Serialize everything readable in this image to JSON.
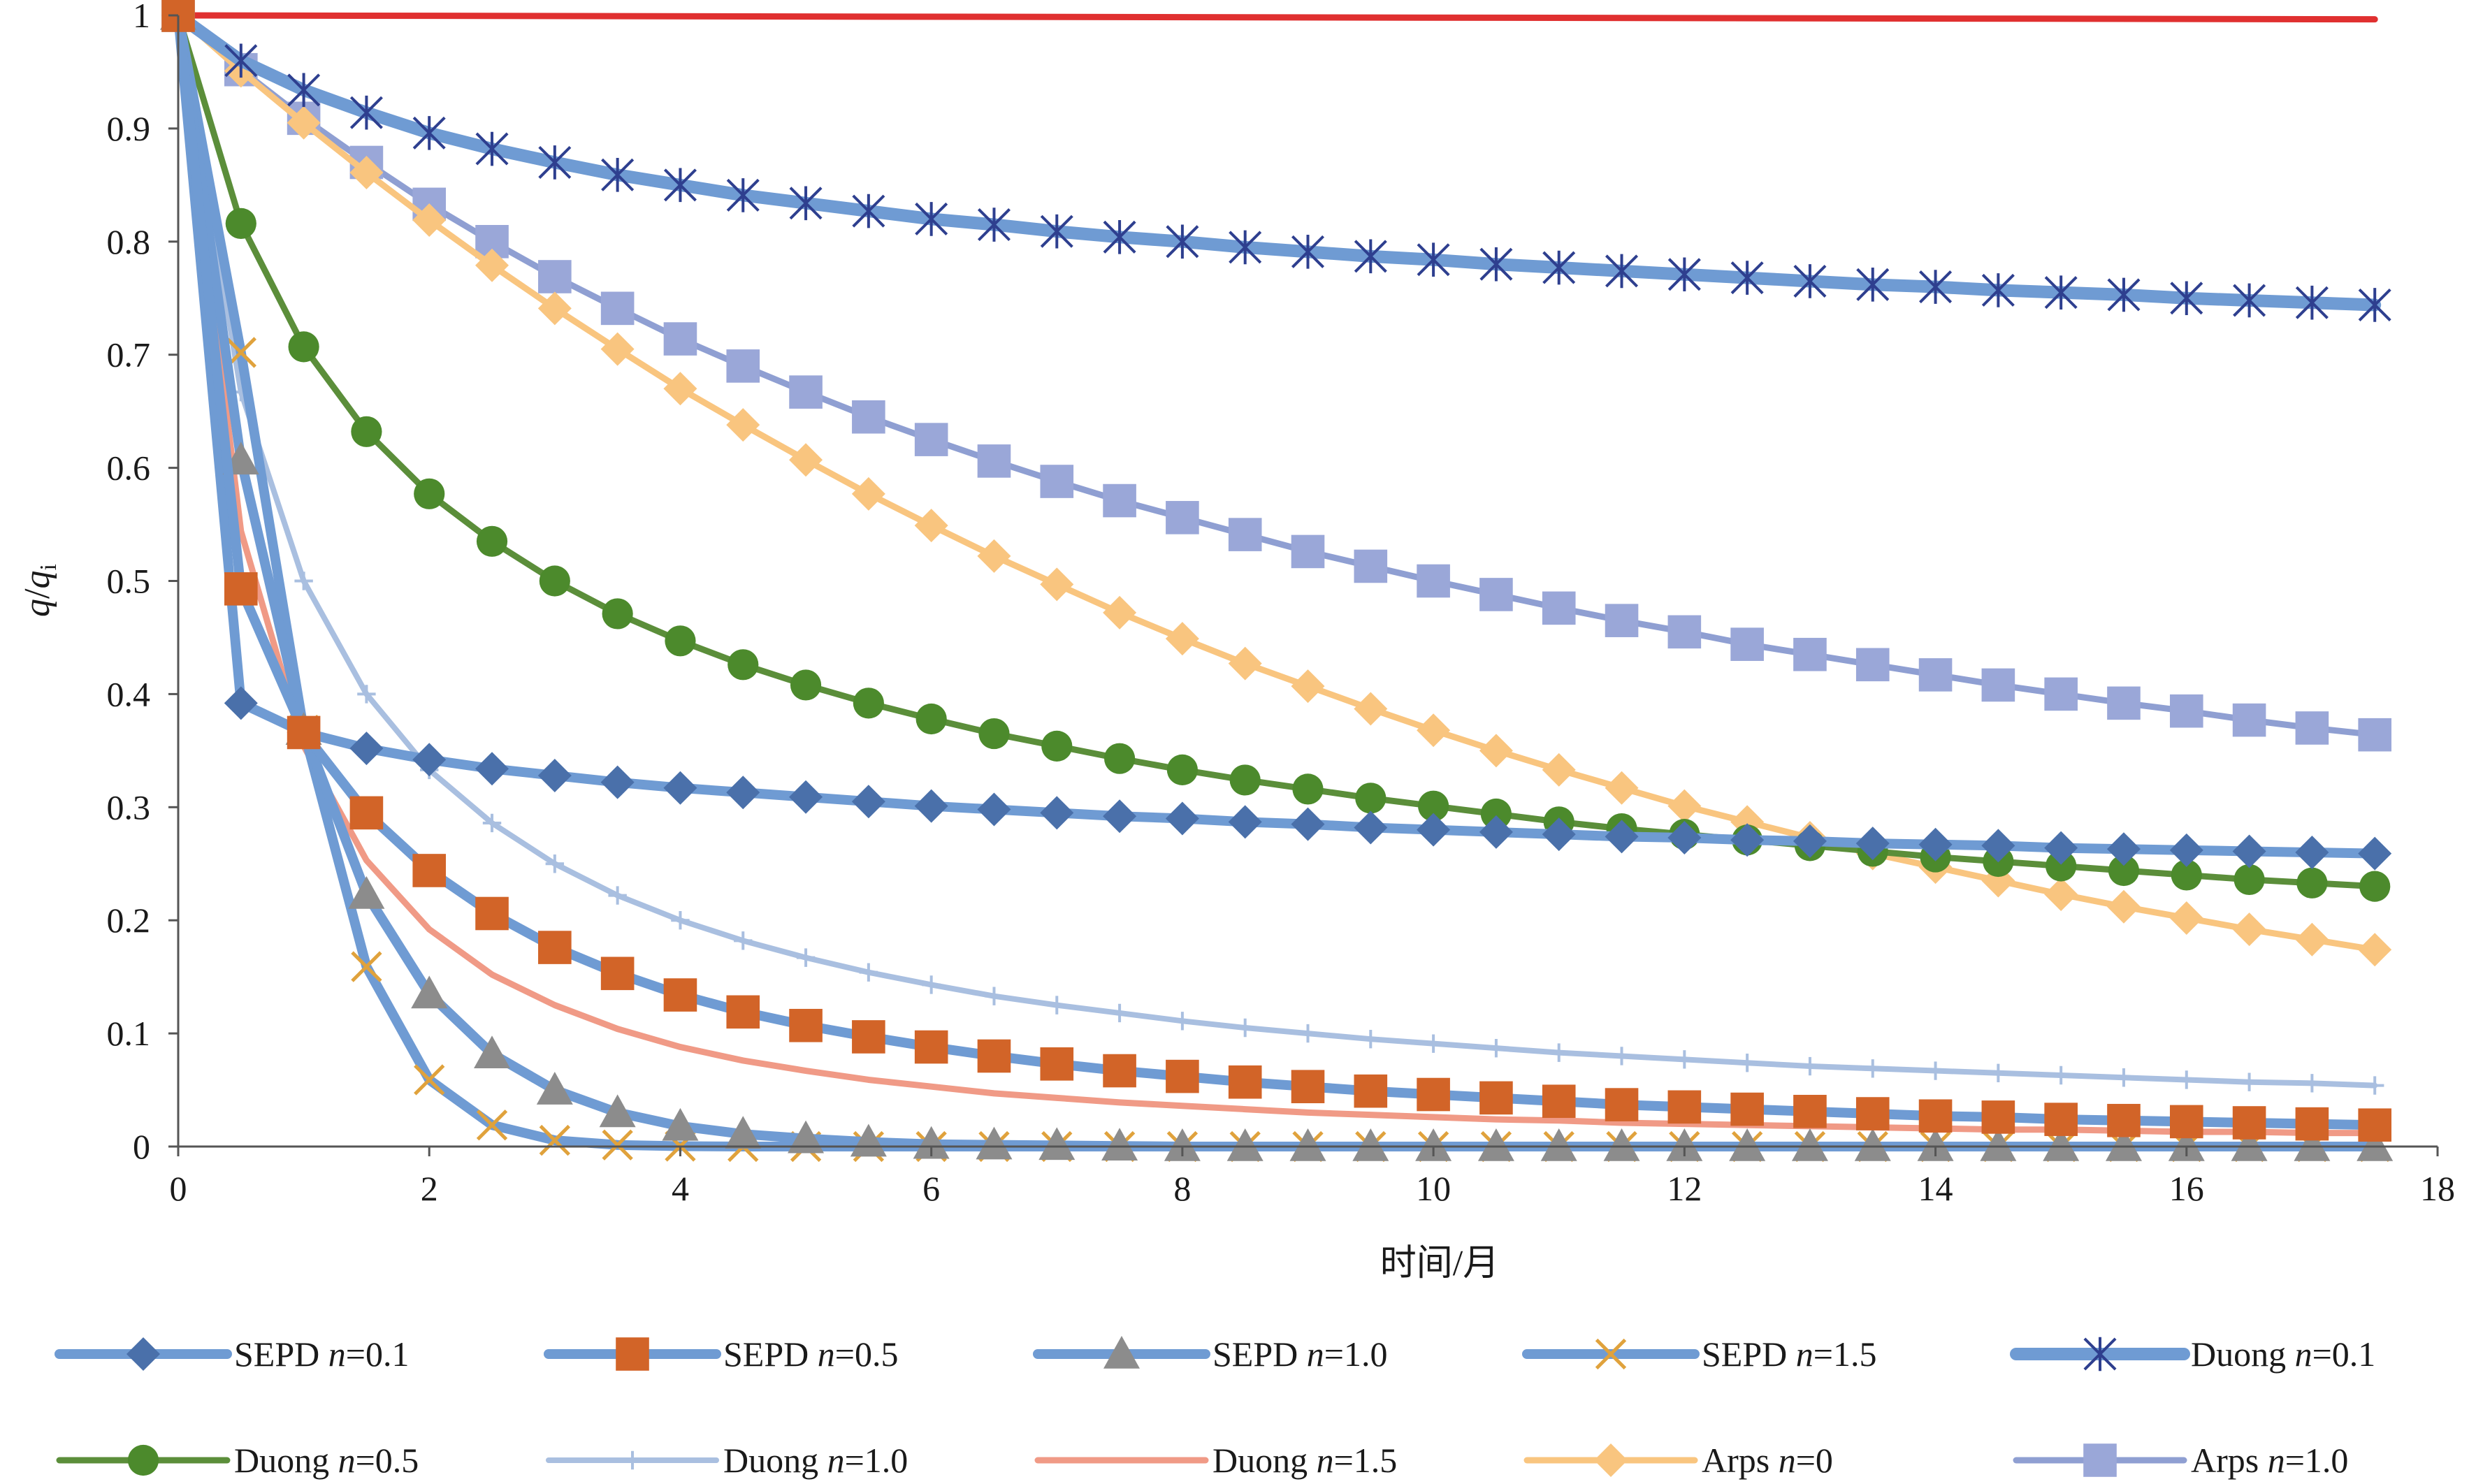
{
  "chart_data": {
    "type": "line",
    "xlabel": "时间/月",
    "ylabel_main": "q",
    "ylabel_sep": "/",
    "ylabel_q": "q",
    "ylabel_sub": "i",
    "xlim": [
      0,
      18
    ],
    "ylim": [
      0,
      1
    ],
    "x_ticks": [
      "0",
      "2",
      "4",
      "6",
      "8",
      "10",
      "12",
      "14",
      "16",
      "18"
    ],
    "y_ticks": [
      "0",
      "0.1",
      "0.2",
      "0.3",
      "0.4",
      "0.5",
      "0.6",
      "0.7",
      "0.8",
      "0.9",
      "1"
    ],
    "grid": false,
    "legend_placement": "bottom",
    "x": [
      0,
      0.5,
      1,
      1.5,
      2,
      2.5,
      3,
      3.5,
      4,
      4.5,
      5,
      5.5,
      6,
      6.5,
      7,
      7.5,
      8,
      8.5,
      9,
      9.5,
      10,
      10.5,
      11,
      11.5,
      12,
      12.5,
      13,
      13.5,
      14,
      14.5,
      15,
      15.5,
      16,
      16.5,
      17,
      17.5
    ],
    "series": [
      {
        "name": "SEPD",
        "n_label": "n",
        "n_value": "=0.1",
        "color": "#6f9bd3",
        "marker": "diamond",
        "marker_color": "#4a70aa",
        "line_width": 14,
        "values": [
          1,
          0.392,
          0.366,
          0.352,
          0.342,
          0.334,
          0.328,
          0.322,
          0.317,
          0.313,
          0.309,
          0.305,
          0.301,
          0.298,
          0.295,
          0.292,
          0.29,
          0.287,
          0.285,
          0.282,
          0.28,
          0.278,
          0.276,
          0.274,
          0.273,
          0.271,
          0.27,
          0.268,
          0.267,
          0.266,
          0.264,
          0.263,
          0.262,
          0.261,
          0.26,
          0.259
        ]
      },
      {
        "name": "SEPD",
        "n_label": "n",
        "n_value": "=0.5",
        "color": "#6f9bd3",
        "marker": "square",
        "marker_color": "#d26428",
        "line_width": 14,
        "values": [
          1,
          0.493,
          0.366,
          0.295,
          0.244,
          0.206,
          0.176,
          0.153,
          0.134,
          0.119,
          0.107,
          0.097,
          0.088,
          0.08,
          0.073,
          0.067,
          0.062,
          0.057,
          0.053,
          0.049,
          0.046,
          0.043,
          0.04,
          0.037,
          0.035,
          0.033,
          0.031,
          0.029,
          0.027,
          0.026,
          0.024,
          0.023,
          0.022,
          0.021,
          0.02,
          0.019
        ]
      },
      {
        "name": "SEPD",
        "n_label": "n",
        "n_value": "=1.0",
        "color": "#6f9bd3",
        "marker": "triangle",
        "marker_color": "#8c8c8c",
        "line_width": 14,
        "values": [
          1,
          0.607,
          0.368,
          0.223,
          0.135,
          0.082,
          0.05,
          0.03,
          0.018,
          0.011,
          0.007,
          0.004,
          0.002,
          0.0015,
          0.001,
          0.0005,
          0,
          0,
          0,
          0,
          0,
          0,
          0,
          0,
          0,
          0,
          0,
          0,
          0,
          0,
          0,
          0,
          0,
          0,
          0,
          0
        ]
      },
      {
        "name": "SEPD",
        "n_label": "n",
        "n_value": "=1.5",
        "color": "#6f9bd3",
        "marker": "x",
        "marker_color": "#e0a23c",
        "line_width": 14,
        "values": [
          1,
          0.702,
          0.368,
          0.159,
          0.059,
          0.019,
          0.0055,
          0.0014,
          0.0003,
          0,
          0,
          0,
          0,
          0,
          0,
          0,
          0,
          0,
          0,
          0,
          0,
          0,
          0,
          0,
          0,
          0,
          0,
          0,
          0,
          0,
          0,
          0,
          0,
          0,
          0,
          0
        ]
      },
      {
        "name": "Duong",
        "n_label": "n",
        "n_value": "=0.1",
        "color": "#6f9bd3",
        "marker": "star",
        "marker_color": "#2e3f8f",
        "line_width": 18,
        "values": [
          1,
          0.96,
          0.934,
          0.914,
          0.896,
          0.882,
          0.87,
          0.859,
          0.85,
          0.841,
          0.834,
          0.827,
          0.82,
          0.815,
          0.809,
          0.804,
          0.8,
          0.795,
          0.791,
          0.787,
          0.784,
          0.78,
          0.777,
          0.774,
          0.771,
          0.768,
          0.765,
          0.762,
          0.76,
          0.757,
          0.755,
          0.753,
          0.75,
          0.748,
          0.746,
          0.744
        ]
      },
      {
        "name": "Duong",
        "n_label": "n",
        "n_value": "=0.5",
        "color": "#5b8e3a",
        "marker": "circle",
        "marker_color": "#4c8a2c",
        "line_width": 9,
        "values": [
          1,
          0.816,
          0.707,
          0.632,
          0.577,
          0.535,
          0.5,
          0.471,
          0.447,
          0.426,
          0.408,
          0.392,
          0.378,
          0.365,
          0.354,
          0.343,
          0.333,
          0.324,
          0.316,
          0.308,
          0.301,
          0.294,
          0.287,
          0.281,
          0.276,
          0.271,
          0.266,
          0.261,
          0.256,
          0.252,
          0.248,
          0.244,
          0.24,
          0.236,
          0.233,
          0.23
        ]
      },
      {
        "name": "Duong",
        "n_label": "n",
        "n_value": "=1.0",
        "color": "#a9bfe0",
        "marker": "plus",
        "marker_color": "#a9bfe0",
        "line_width": 8,
        "values": [
          1,
          0.667,
          0.5,
          0.4,
          0.333,
          0.286,
          0.25,
          0.222,
          0.2,
          0.182,
          0.167,
          0.154,
          0.143,
          0.133,
          0.125,
          0.118,
          0.111,
          0.105,
          0.1,
          0.095,
          0.091,
          0.087,
          0.083,
          0.08,
          0.077,
          0.074,
          0.071,
          0.069,
          0.067,
          0.065,
          0.063,
          0.061,
          0.059,
          0.057,
          0.056,
          0.054
        ]
      },
      {
        "name": "Duong",
        "n_label": "n",
        "n_value": "=1.5",
        "color": "#f09a86",
        "marker": "none",
        "marker_color": "#f09a86",
        "line_width": 9,
        "values": [
          1,
          0.544,
          0.354,
          0.253,
          0.192,
          0.152,
          0.125,
          0.104,
          0.088,
          0.076,
          0.067,
          0.059,
          0.053,
          0.047,
          0.043,
          0.039,
          0.036,
          0.033,
          0.03,
          0.028,
          0.026,
          0.024,
          0.023,
          0.021,
          0.02,
          0.019,
          0.018,
          0.017,
          0.016,
          0.015,
          0.015,
          0.014,
          0.013,
          0.013,
          0.012,
          0.012
        ]
      },
      {
        "name": "Arps",
        "n_label": "n",
        "n_value": "=0",
        "color": "#f9c57f",
        "marker": "diamond",
        "marker_color": "#f9c57f",
        "line_width": 9,
        "values": [
          1,
          0.951,
          0.905,
          0.861,
          0.819,
          0.779,
          0.741,
          0.705,
          0.67,
          0.638,
          0.607,
          0.577,
          0.549,
          0.522,
          0.497,
          0.472,
          0.449,
          0.427,
          0.407,
          0.387,
          0.368,
          0.35,
          0.333,
          0.317,
          0.301,
          0.287,
          0.273,
          0.259,
          0.247,
          0.235,
          0.223,
          0.212,
          0.202,
          0.192,
          0.183,
          0.174
        ]
      },
      {
        "name": "Arps",
        "n_label": "n",
        "n_value": "=1.0",
        "color": "#8f9fd2",
        "marker": "square",
        "marker_color": "#9aa7d8",
        "line_width": 9,
        "values": [
          1,
          0.952,
          0.909,
          0.87,
          0.833,
          0.8,
          0.769,
          0.741,
          0.714,
          0.69,
          0.667,
          0.645,
          0.625,
          0.606,
          0.588,
          0.571,
          0.556,
          0.541,
          0.526,
          0.513,
          0.5,
          0.488,
          0.476,
          0.465,
          0.455,
          0.444,
          0.435,
          0.426,
          0.417,
          0.408,
          0.4,
          0.392,
          0.385,
          0.377,
          0.37,
          0.364
        ]
      },
      {
        "name": "",
        "color": "#e03030",
        "marker": "none",
        "line_width": 9,
        "in_legend": false,
        "values": [
          1,
          0.9999,
          0.9998,
          0.9997,
          0.9996,
          0.9995,
          0.9994,
          0.9993,
          0.9992,
          0.9991,
          0.999,
          0.9989,
          0.9988,
          0.9987,
          0.9986,
          0.9985,
          0.9984,
          0.9983,
          0.9982,
          0.9981,
          0.998,
          0.9979,
          0.9978,
          0.9977,
          0.9976,
          0.9975,
          0.9974,
          0.9973,
          0.9972,
          0.9971,
          0.997,
          0.9969,
          0.9968,
          0.9967,
          0.9966,
          0.9965
        ]
      }
    ]
  }
}
